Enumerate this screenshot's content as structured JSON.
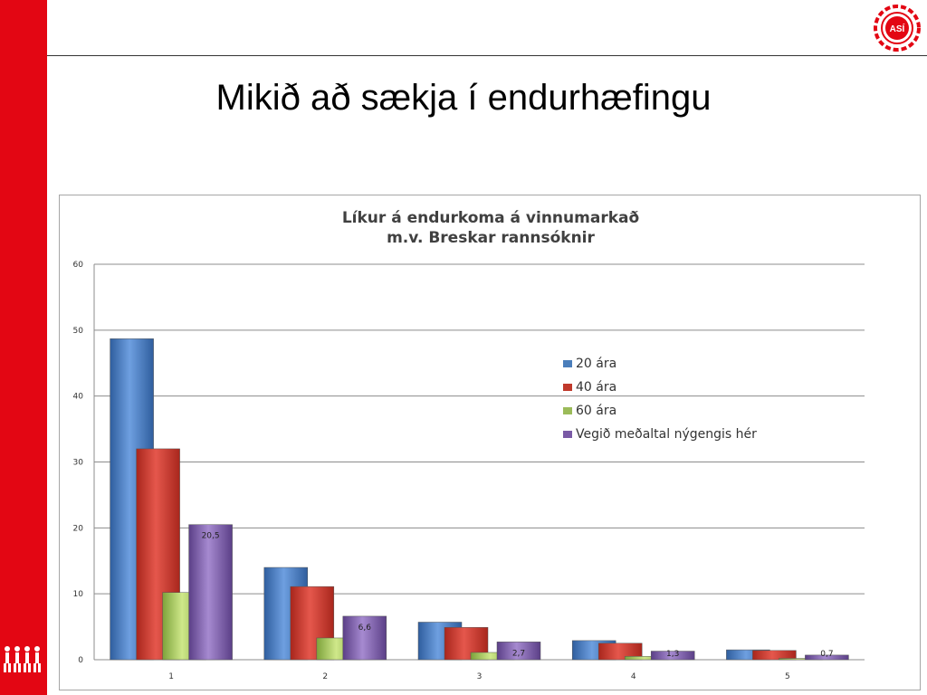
{
  "slide": {
    "title": "Mikið að sækja í endurhæfingu",
    "logo_text": "ASÍ"
  },
  "colors": {
    "accent_red": "#e30613",
    "series": [
      "#4a7ebb",
      "#c0392b",
      "#9bbb59",
      "#7a5aa6"
    ]
  },
  "chart_data": {
    "type": "bar",
    "title": "Líkur á endurkoma á vinnumarkað",
    "subtitle": "m.v. Breskar rannsóknir",
    "xlabel": "",
    "ylabel": "",
    "ylim": [
      0,
      60
    ],
    "yticks": [
      0,
      10,
      20,
      30,
      40,
      50,
      60
    ],
    "categories": [
      "1",
      "2",
      "3",
      "4",
      "5"
    ],
    "grid": true,
    "legend_position": "right",
    "series": [
      {
        "name": "20 ára",
        "values": [
          48.7,
          14.0,
          5.7,
          2.9,
          1.5
        ]
      },
      {
        "name": "40 ára",
        "values": [
          32.0,
          11.1,
          4.9,
          2.5,
          1.4
        ]
      },
      {
        "name": "60 ára",
        "values": [
          10.2,
          3.3,
          1.1,
          0.5,
          0.2
        ]
      },
      {
        "name": "Vegið meðaltal nýgengis hér",
        "values": [
          20.5,
          6.6,
          2.7,
          1.3,
          0.7
        ]
      }
    ],
    "data_labels": [
      "20,5",
      "6,6",
      "2,7",
      "1,3",
      "0,7"
    ]
  }
}
